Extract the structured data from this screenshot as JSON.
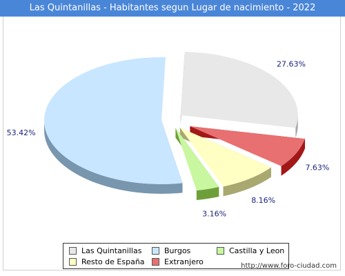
{
  "header": {
    "title": "Las Quintanillas - Habitantes segun Lugar de nacimiento - 2022"
  },
  "footer": {
    "url": "http://www.foro-ciudad.com"
  },
  "chart_data": {
    "type": "pie",
    "title": "Las Quintanillas - Habitantes segun Lugar de nacimiento - 2022",
    "legend_position": "bottom",
    "slices": [
      {
        "label": "Las Quintanillas",
        "value": 27.63,
        "value_label": "27.63%",
        "color": "#e8e8e8",
        "side": "#a6a6a6"
      },
      {
        "label": "Extranjero",
        "value": 7.63,
        "value_label": "7.63%",
        "color": "#e87070",
        "side": "#a21818"
      },
      {
        "label": "Resto de España",
        "value": 8.16,
        "value_label": "8.16%",
        "color": "#ffffc4",
        "side": "#a8a870"
      },
      {
        "label": "Castilla y Leon",
        "value": 3.16,
        "value_label": "3.16%",
        "color": "#c8f7a0",
        "side": "#6f9f3a"
      },
      {
        "label": "Burgos",
        "value": 53.42,
        "value_label": "53.42%",
        "color": "#c8e6ff",
        "side": "#7896ae"
      }
    ],
    "legend_order": [
      "Las Quintanillas",
      "Burgos",
      "Castilla y Leon",
      "Resto de España",
      "Extranjero"
    ]
  }
}
